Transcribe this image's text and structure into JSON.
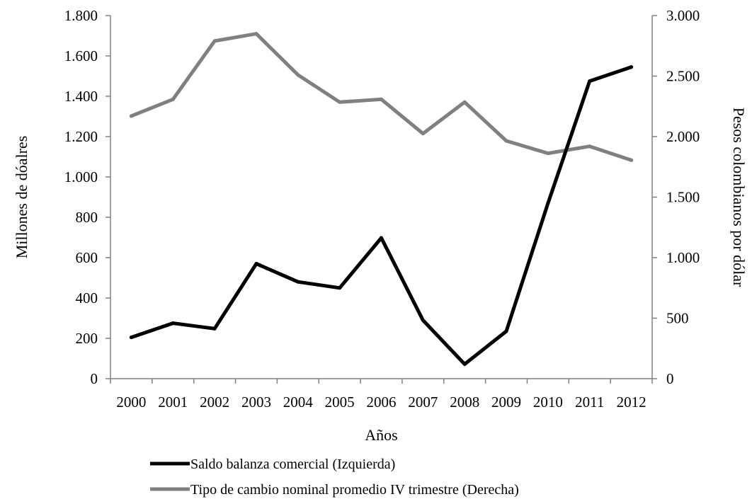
{
  "chart_data": {
    "type": "line",
    "title": "",
    "xlabel": "Años",
    "ylabel_left": "Millones de dóalres",
    "ylabel_right": "Pesos colombianos por dólar",
    "categories": [
      "2000",
      "2001",
      "2002",
      "2003",
      "2004",
      "2005",
      "2006",
      "2007",
      "2008",
      "2009",
      "2010",
      "2011",
      "2012"
    ],
    "y_left": {
      "lim": [
        0,
        1800
      ],
      "ticks": [
        0,
        200,
        400,
        600,
        800,
        1000,
        1200,
        1400,
        1600,
        1800
      ],
      "tick_labels": [
        "0",
        "200",
        "400",
        "600",
        "800",
        "1.000",
        "1.200",
        "1.400",
        "1.600",
        "1.800"
      ]
    },
    "y_right": {
      "lim": [
        0,
        3000
      ],
      "ticks": [
        0,
        500,
        1000,
        1500,
        2000,
        2500,
        3000
      ],
      "tick_labels": [
        "0",
        "500",
        "1.000",
        "1.500",
        "2.000",
        "2.500",
        "3.000"
      ]
    },
    "series": [
      {
        "name": "Saldo balanza comercial (Izquierda)",
        "axis": "left",
        "color": "#000000",
        "values": [
          205,
          275,
          248,
          570,
          480,
          450,
          698,
          290,
          72,
          235,
          870,
          1475,
          1545
        ]
      },
      {
        "name": "Tipo de cambio nominal promedio IV trimestre (Derecha)",
        "axis": "right",
        "color": "#808080",
        "values": [
          2170,
          2308,
          2790,
          2850,
          2510,
          2285,
          2308,
          2025,
          2285,
          1965,
          1862,
          1920,
          1805
        ]
      }
    ],
    "grid": false,
    "legend_position": "bottom"
  }
}
